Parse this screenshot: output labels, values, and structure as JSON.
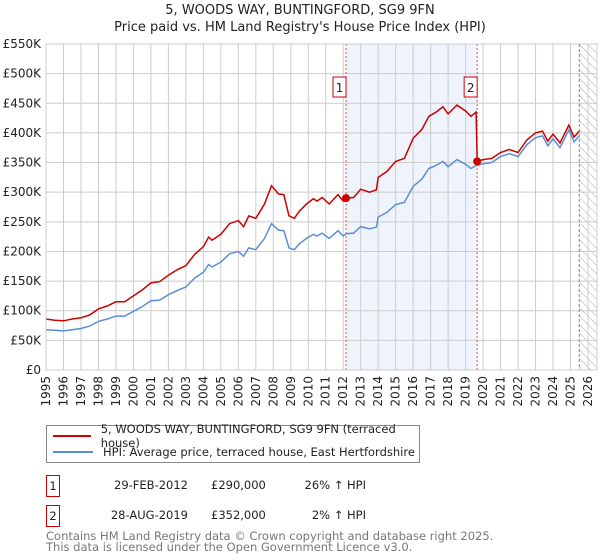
{
  "chart_data": {
    "type": "line",
    "title": "5, WOODS WAY, BUNTINGFORD, SG9 9FN",
    "subtitle": "Price paid vs. HM Land Registry's House Price Index (HPI)",
    "xlim": [
      1995,
      2026.5
    ],
    "ylim": [
      0,
      550000
    ],
    "y_ticks": [
      0,
      50000,
      100000,
      150000,
      200000,
      250000,
      300000,
      350000,
      400000,
      450000,
      500000,
      550000
    ],
    "y_tick_labels": [
      "£0",
      "£50K",
      "£100K",
      "£150K",
      "£200K",
      "£250K",
      "£300K",
      "£350K",
      "£400K",
      "£450K",
      "£500K",
      "£550K"
    ],
    "x_ticks": [
      1995,
      1996,
      1997,
      1998,
      1999,
      2000,
      2001,
      2002,
      2003,
      2004,
      2005,
      2006,
      2007,
      2008,
      2009,
      2010,
      2011,
      2012,
      2013,
      2014,
      2015,
      2016,
      2017,
      2018,
      2019,
      2020,
      2021,
      2022,
      2023,
      2024,
      2025,
      2026
    ],
    "grid": true,
    "shaded_period": [
      2012.16,
      2019.66
    ],
    "forecast_hatch_from": 2025.5,
    "x": [
      1995.0,
      1995.5,
      1996.0,
      1996.5,
      1997.0,
      1997.5,
      1998.0,
      1998.5,
      1999.0,
      1999.5,
      2000.0,
      2000.5,
      2001.0,
      2001.5,
      2002.0,
      2002.5,
      2003.0,
      2003.5,
      2004.0,
      2004.3,
      2004.5,
      2005.0,
      2005.5,
      2006.0,
      2006.3,
      2006.6,
      2007.0,
      2007.5,
      2007.9,
      2008.3,
      2008.6,
      2008.9,
      2009.2,
      2009.5,
      2009.9,
      2010.3,
      2010.5,
      2010.8,
      2011.2,
      2011.7,
      2012.0,
      2012.16,
      2012.6,
      2013.0,
      2013.5,
      2013.9,
      2014.0,
      2014.5,
      2015.0,
      2015.5,
      2016.0,
      2016.5,
      2016.9,
      2017.3,
      2017.7,
      2018.0,
      2018.5,
      2019.0,
      2019.3,
      2019.6,
      2019.66,
      2020.0,
      2020.5,
      2021.0,
      2021.5,
      2022.0,
      2022.5,
      2023.0,
      2023.4,
      2023.7,
      2024.0,
      2024.4,
      2024.9,
      2025.2,
      2025.5
    ],
    "series": [
      {
        "name": "5, WOODS WAY, BUNTINGFORD, SG9 9FN (terraced house)",
        "color": "#cc0000",
        "values": [
          86000,
          84000,
          83000,
          86000,
          88000,
          93000,
          103000,
          108000,
          115000,
          115000,
          125000,
          135000,
          147000,
          149000,
          160000,
          169000,
          176000,
          195000,
          208000,
          224000,
          219000,
          229000,
          247000,
          252000,
          242000,
          260000,
          256000,
          280000,
          311000,
          297000,
          296000,
          260000,
          256000,
          268000,
          280000,
          289000,
          285000,
          291000,
          280000,
          296000,
          285000,
          290000,
          291000,
          305000,
          300000,
          304000,
          325000,
          335000,
          352000,
          357000,
          391000,
          406000,
          428000,
          435000,
          444000,
          432000,
          447000,
          437000,
          428000,
          435000,
          352000,
          355000,
          357000,
          367000,
          372000,
          367000,
          388000,
          400000,
          403000,
          386000,
          398000,
          383000,
          413000,
          393000,
          403000
        ]
      },
      {
        "name": "HPI: Average price, terraced house, East Hertfordshire",
        "color": "#5b8fd4",
        "values": [
          68000,
          67000,
          66000,
          68000,
          70000,
          74000,
          82000,
          86000,
          91000,
          91000,
          99000,
          107000,
          117000,
          118000,
          127000,
          134000,
          140000,
          155000,
          165000,
          178000,
          174000,
          182000,
          196000,
          200000,
          192000,
          206000,
          203000,
          222000,
          247000,
          236000,
          235000,
          206000,
          203000,
          213000,
          222000,
          229000,
          226000,
          231000,
          222000,
          235000,
          226000,
          230000,
          231000,
          242000,
          238000,
          241000,
          258000,
          266000,
          279000,
          283000,
          310000,
          322000,
          340000,
          345000,
          352000,
          343000,
          355000,
          347000,
          340000,
          345000,
          345000,
          348000,
          350000,
          360000,
          365000,
          360000,
          380000,
          392000,
          395000,
          378000,
          390000,
          375000,
          405000,
          385000,
          395000
        ]
      }
    ],
    "sales": [
      {
        "label": "1",
        "x": 2012.16,
        "price": 290000,
        "date": "29-FEB-2012",
        "price_text": "£290,000",
        "hpi_text": "26% ↑ HPI"
      },
      {
        "label": "2",
        "x": 2019.66,
        "price": 352000,
        "date": "28-AUG-2019",
        "price_text": "£352,000",
        "hpi_text": "2% ↑ HPI"
      }
    ]
  },
  "footer": [
    "Contains HM Land Registry data © Crown copyright and database right 2025.",
    "This data is licensed under the Open Government Licence v3.0."
  ]
}
